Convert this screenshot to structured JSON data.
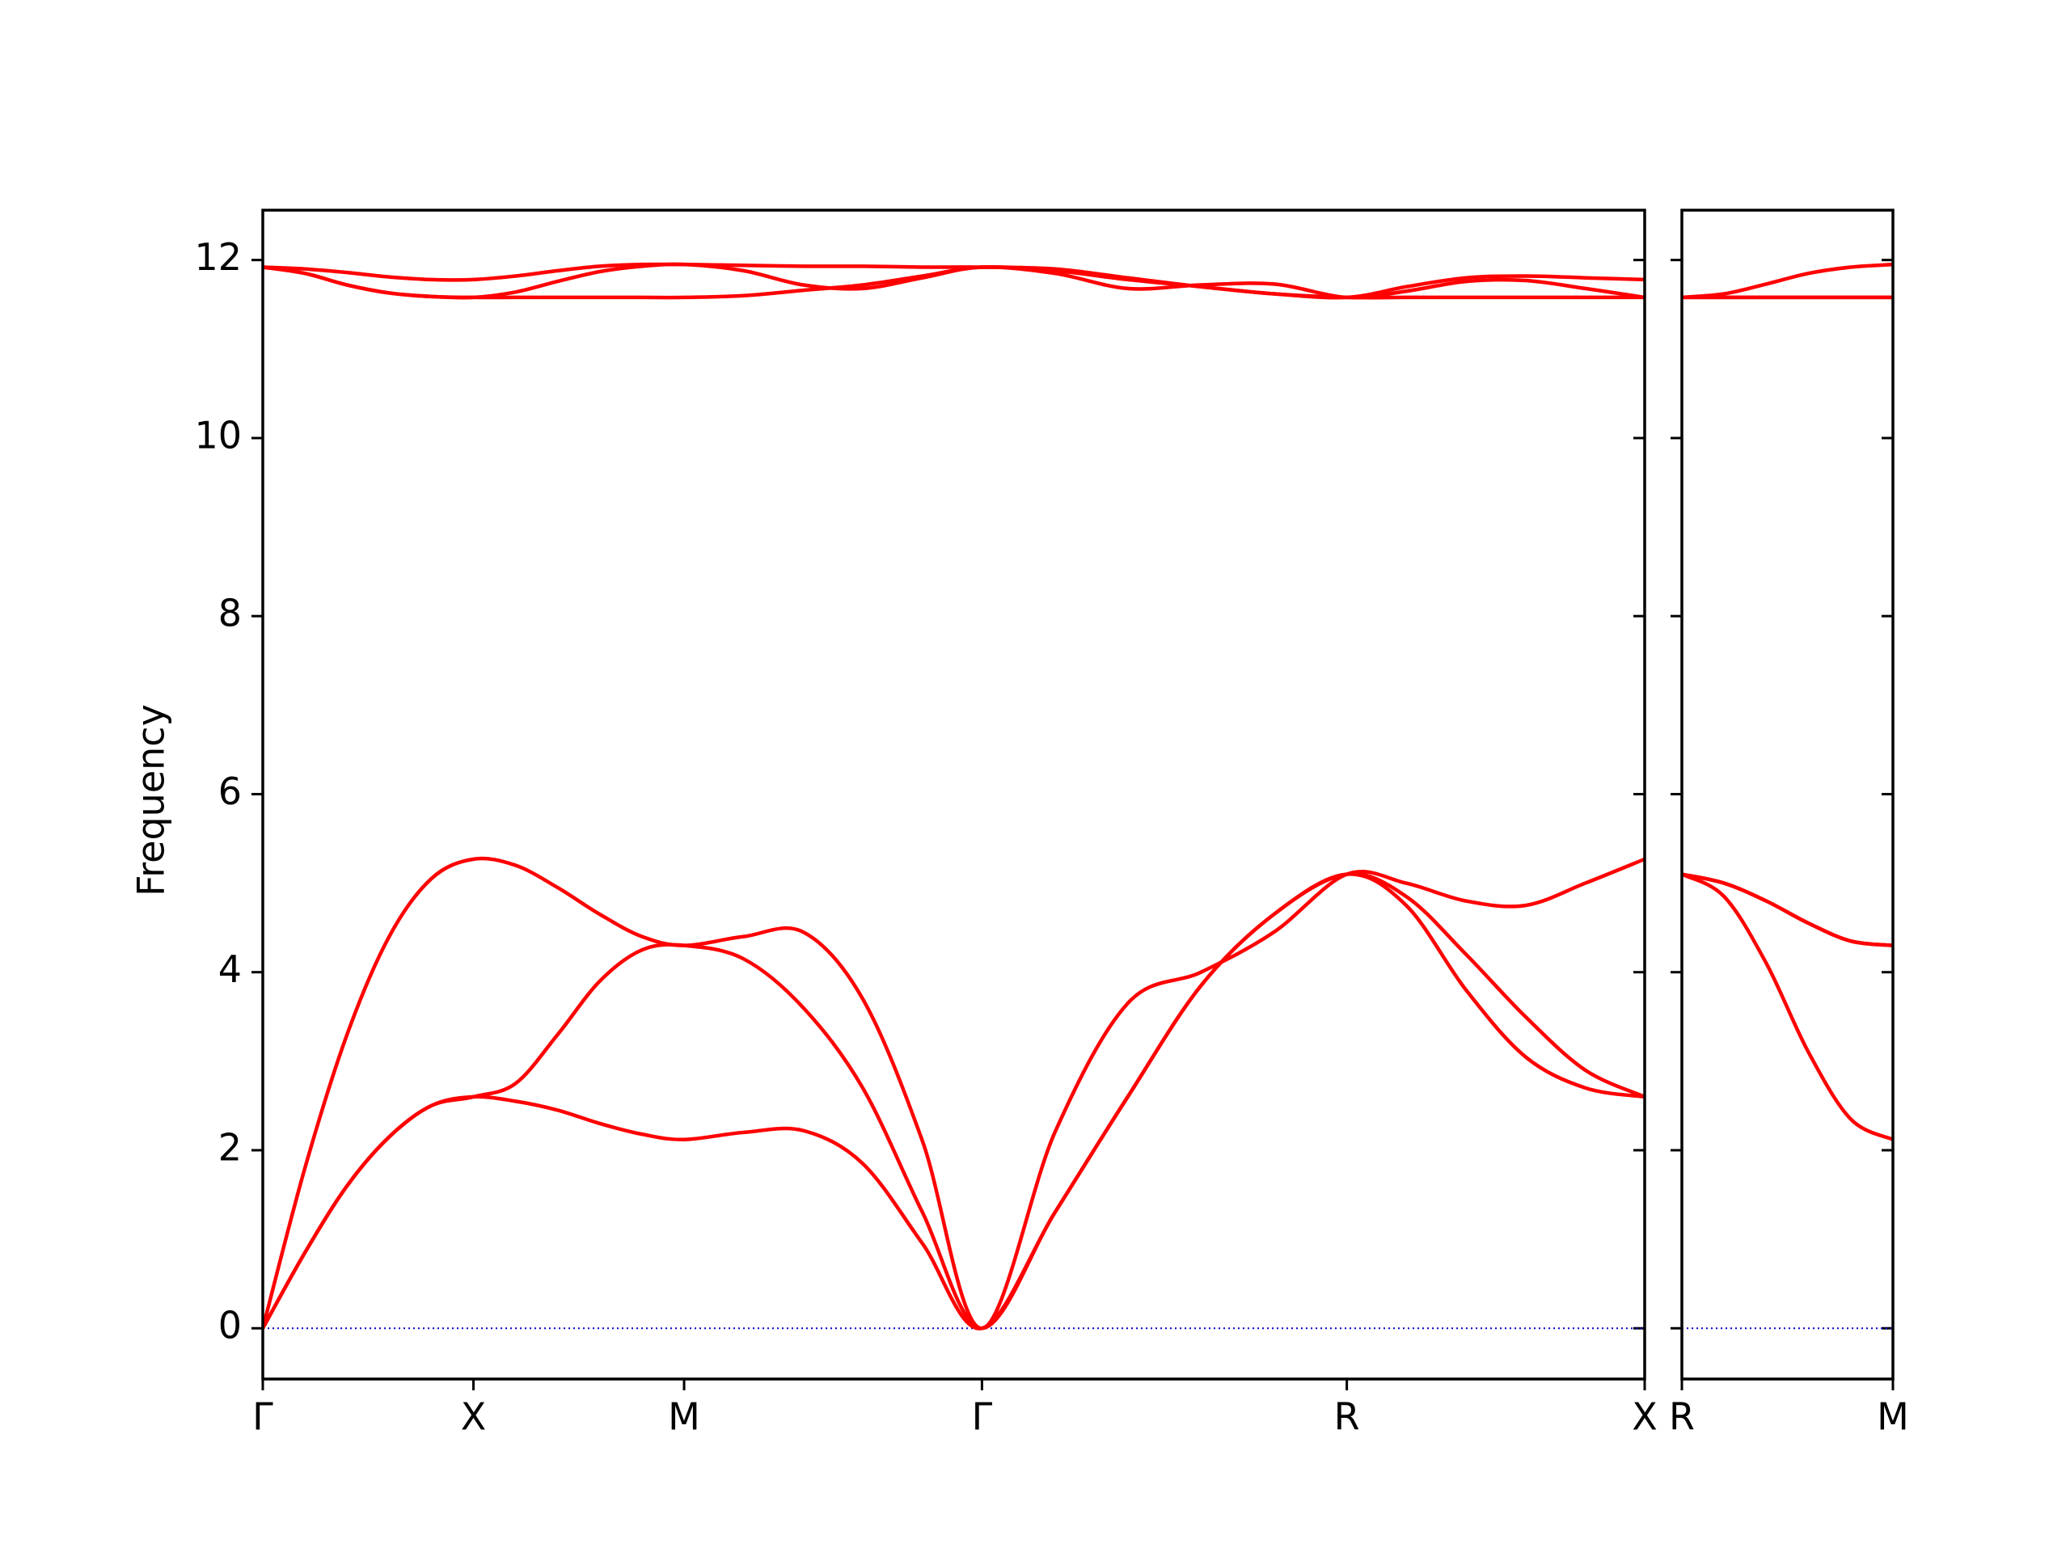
{
  "chart_data": [
    {
      "type": "line",
      "ylabel": "Frequency",
      "color": "#ff0000",
      "zero_line": {
        "value": 0,
        "color": "#0000cc"
      },
      "x": [
        0,
        0.1,
        0.2,
        0.3,
        0.4,
        0.5,
        0.6,
        0.7,
        0.8,
        0.9,
        1.0,
        1.141,
        1.283,
        1.424,
        1.566,
        1.707,
        1.88,
        2.053,
        2.227,
        2.4,
        2.573,
        2.714,
        2.856,
        2.997,
        3.139,
        3.28
      ],
      "xlim": [
        0,
        3.28
      ],
      "xticks": [
        {
          "value": 0,
          "label": "Γ"
        },
        {
          "value": 0.5,
          "label": "X"
        },
        {
          "value": 1.0,
          "label": "M"
        },
        {
          "value": 1.707,
          "label": "Γ"
        },
        {
          "value": 2.573,
          "label": "R"
        },
        {
          "value": 3.28,
          "label": "X"
        }
      ],
      "ylim": [
        -0.57,
        12.56
      ],
      "yticks": [
        0,
        2,
        4,
        6,
        8,
        10,
        12
      ],
      "show_ytick_labels": true,
      "series": [
        {
          "values": [
            0,
            0.85,
            1.6,
            2.15,
            2.5,
            2.6,
            2.55,
            2.45,
            2.3,
            2.18,
            2.12,
            2.2,
            2.22,
            1.85,
            0.95,
            0,
            1.3,
            2.6,
            3.85,
            4.65,
            5.1,
            4.75,
            3.8,
            3.05,
            2.7,
            2.6
          ]
        },
        {
          "values": [
            0,
            0.85,
            1.6,
            2.15,
            2.5,
            2.6,
            2.75,
            3.3,
            3.9,
            4.25,
            4.3,
            4.15,
            3.6,
            2.7,
            1.3,
            0,
            1.3,
            2.6,
            3.85,
            4.65,
            5.1,
            4.85,
            4.2,
            3.5,
            2.9,
            2.6
          ]
        },
        {
          "values": [
            0,
            1.8,
            3.3,
            4.4,
            5.05,
            5.27,
            5.2,
            4.95,
            4.65,
            4.4,
            4.3,
            4.4,
            4.45,
            3.7,
            2.1,
            0,
            2.2,
            3.65,
            4.0,
            4.45,
            5.1,
            5.0,
            4.8,
            4.75,
            5.0,
            5.27
          ]
        },
        {
          "values": [
            11.92,
            11.85,
            11.72,
            11.63,
            11.59,
            11.58,
            11.58,
            11.58,
            11.58,
            11.58,
            11.58,
            11.6,
            11.66,
            11.72,
            11.82,
            11.92,
            11.88,
            11.78,
            11.7,
            11.62,
            11.58,
            11.58,
            11.58,
            11.58,
            11.58,
            11.58
          ]
        },
        {
          "values": [
            11.92,
            11.85,
            11.72,
            11.63,
            11.59,
            11.58,
            11.64,
            11.76,
            11.87,
            11.93,
            11.95,
            11.88,
            11.72,
            11.68,
            11.8,
            11.92,
            11.85,
            11.68,
            11.72,
            11.73,
            11.58,
            11.65,
            11.76,
            11.77,
            11.68,
            11.58
          ]
        },
        {
          "values": [
            11.92,
            11.9,
            11.86,
            11.81,
            11.78,
            11.78,
            11.82,
            11.88,
            11.93,
            11.95,
            11.95,
            11.94,
            11.93,
            11.93,
            11.92,
            11.92,
            11.9,
            11.8,
            11.7,
            11.62,
            11.58,
            11.7,
            11.8,
            11.82,
            11.8,
            11.78
          ]
        }
      ]
    },
    {
      "type": "line",
      "color": "#ff0000",
      "zero_line": {
        "value": 0,
        "color": "#0000cc"
      },
      "x": [
        0,
        0.1,
        0.2,
        0.3,
        0.4,
        0.5
      ],
      "xlim": [
        0,
        0.5
      ],
      "xticks": [
        {
          "value": 0,
          "label": "R"
        },
        {
          "value": 0.5,
          "label": "M"
        }
      ],
      "ylim": [
        -0.57,
        12.56
      ],
      "yticks": [
        0,
        2,
        4,
        6,
        8,
        10,
        12
      ],
      "show_ytick_labels": false,
      "series": [
        {
          "values": [
            5.1,
            4.85,
            4.1,
            3.1,
            2.35,
            2.12
          ]
        },
        {
          "values": [
            5.1,
            5.0,
            4.8,
            4.55,
            4.35,
            4.3
          ]
        },
        {
          "values": [
            5.1,
            5.0,
            4.8,
            4.55,
            4.35,
            4.3
          ]
        },
        {
          "values": [
            11.58,
            11.58,
            11.58,
            11.58,
            11.58,
            11.58
          ]
        },
        {
          "values": [
            11.58,
            11.58,
            11.58,
            11.58,
            11.58,
            11.58
          ]
        },
        {
          "values": [
            11.58,
            11.62,
            11.73,
            11.85,
            11.92,
            11.95
          ]
        }
      ]
    }
  ]
}
